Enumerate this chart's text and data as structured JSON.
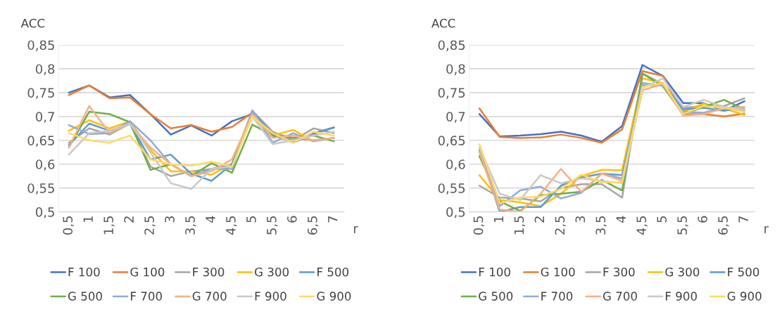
{
  "chart_data": [
    {
      "type": "line",
      "ylabel": "ACC",
      "xlabel": "r",
      "categories": [
        "0,5",
        "1",
        "1,5",
        "2",
        "2,5",
        "3",
        "3,5",
        "4",
        "4,5",
        "5",
        "5,5",
        "6",
        "6,5",
        "7"
      ],
      "ylim": [
        0.5,
        0.85
      ],
      "yticks": [
        {
          "value": 0.5,
          "label": "0,5"
        },
        {
          "value": 0.55,
          "label": "0,55"
        },
        {
          "value": 0.6,
          "label": "0,6"
        },
        {
          "value": 0.65,
          "label": "0,65"
        },
        {
          "value": 0.7,
          "label": "0,7"
        },
        {
          "value": 0.75,
          "label": "0,75"
        },
        {
          "value": 0.8,
          "label": "0,8"
        },
        {
          "value": 0.85,
          "label": "0,85"
        }
      ],
      "grid": "y",
      "legend": "bottom",
      "series": [
        {
          "name": "F 100",
          "color": "#4472c4",
          "values": [
            0.75,
            0.765,
            0.74,
            0.745,
            0.705,
            0.662,
            0.681,
            0.66,
            0.69,
            0.705,
            0.66,
            0.648,
            0.665,
            0.677
          ]
        },
        {
          "name": "G 100",
          "color": "#ed7d31",
          "values": [
            0.745,
            0.765,
            0.738,
            0.74,
            0.705,
            0.675,
            0.682,
            0.668,
            0.678,
            0.708,
            0.665,
            0.655,
            0.65,
            0.655
          ]
        },
        {
          "name": "F 300",
          "color": "#a5a5a5",
          "values": [
            0.645,
            0.675,
            0.662,
            0.685,
            0.595,
            0.575,
            0.585,
            0.59,
            0.6,
            0.712,
            0.668,
            0.65,
            0.675,
            0.665
          ]
        },
        {
          "name": "G 300",
          "color": "#ffc000",
          "values": [
            0.67,
            0.692,
            0.675,
            0.69,
            0.63,
            0.585,
            0.585,
            0.578,
            0.6,
            0.7,
            0.66,
            0.672,
            0.648,
            0.655
          ]
        },
        {
          "name": "F 500",
          "color": "#5b9bd5",
          "values": [
            0.64,
            0.685,
            0.67,
            0.685,
            0.61,
            0.62,
            0.58,
            0.565,
            0.6,
            0.71,
            0.663,
            0.645,
            0.663,
            0.677
          ]
        },
        {
          "name": "G 500",
          "color": "#70ad47",
          "values": [
            0.635,
            0.71,
            0.705,
            0.688,
            0.588,
            0.6,
            0.575,
            0.602,
            0.582,
            0.683,
            0.66,
            0.655,
            0.66,
            0.648
          ]
        },
        {
          "name": "F 700",
          "color": "#8faadc",
          "values": [
            0.682,
            0.663,
            0.665,
            0.69,
            0.65,
            0.6,
            0.575,
            0.59,
            0.59,
            0.713,
            0.645,
            0.665,
            0.648,
            0.655
          ]
        },
        {
          "name": "G 700",
          "color": "#f4b183",
          "values": [
            0.635,
            0.722,
            0.665,
            0.685,
            0.635,
            0.6,
            0.575,
            0.585,
            0.61,
            0.705,
            0.655,
            0.66,
            0.65,
            0.655
          ]
        },
        {
          "name": "F 900",
          "color": "#c9c9c9",
          "values": [
            0.62,
            0.665,
            0.67,
            0.685,
            0.625,
            0.56,
            0.548,
            0.59,
            0.595,
            0.7,
            0.642,
            0.65,
            0.66,
            0.668
          ]
        },
        {
          "name": "G 900",
          "color": "#ffd966",
          "values": [
            0.665,
            0.65,
            0.645,
            0.66,
            0.61,
            0.6,
            0.597,
            0.605,
            0.595,
            0.7,
            0.665,
            0.645,
            0.668,
            0.66
          ]
        }
      ]
    },
    {
      "type": "line",
      "ylabel": "ACC",
      "xlabel": "r",
      "categories": [
        "0,5",
        "1",
        "1,5",
        "2",
        "2,5",
        "3",
        "3,5",
        "4",
        "4,5",
        "5",
        "5,5",
        "6",
        "6,5",
        "7"
      ],
      "ylim": [
        0.5,
        0.85
      ],
      "yticks": [
        {
          "value": 0.5,
          "label": "0,5"
        },
        {
          "value": 0.55,
          "label": "0,55"
        },
        {
          "value": 0.6,
          "label": "0,6"
        },
        {
          "value": 0.65,
          "label": "0,65"
        },
        {
          "value": 0.7,
          "label": "0,7"
        },
        {
          "value": 0.75,
          "label": "0,75"
        },
        {
          "value": 0.8,
          "label": "0,8"
        },
        {
          "value": 0.85,
          "label": "0,85"
        }
      ],
      "grid": "y",
      "legend": "bottom",
      "series": [
        {
          "name": "F 100",
          "color": "#4472c4",
          "values": [
            0.705,
            0.658,
            0.66,
            0.663,
            0.668,
            0.66,
            0.647,
            0.68,
            0.808,
            0.785,
            0.728,
            0.728,
            0.712,
            0.732
          ]
        },
        {
          "name": "G 100",
          "color": "#ed7d31",
          "values": [
            0.717,
            0.657,
            0.655,
            0.656,
            0.662,
            0.655,
            0.645,
            0.673,
            0.795,
            0.785,
            0.705,
            0.705,
            0.7,
            0.706
          ]
        },
        {
          "name": "F 300",
          "color": "#a5a5a5",
          "values": [
            0.555,
            0.53,
            0.528,
            0.522,
            0.55,
            0.558,
            0.558,
            0.53,
            0.79,
            0.768,
            0.718,
            0.722,
            0.722,
            0.738
          ]
        },
        {
          "name": "G 300",
          "color": "#ffc000",
          "values": [
            0.577,
            0.525,
            0.52,
            0.512,
            0.538,
            0.575,
            0.588,
            0.587,
            0.78,
            0.77,
            0.71,
            0.727,
            0.717,
            0.703
          ]
        },
        {
          "name": "F 500",
          "color": "#5b9bd5",
          "values": [
            0.63,
            0.5,
            0.51,
            0.51,
            0.555,
            0.572,
            0.58,
            0.577,
            0.765,
            0.765,
            0.715,
            0.718,
            0.712,
            0.72
          ]
        },
        {
          "name": "G 500",
          "color": "#70ad47",
          "values": [
            0.617,
            0.522,
            0.502,
            0.535,
            0.538,
            0.542,
            0.567,
            0.545,
            0.79,
            0.763,
            0.705,
            0.72,
            0.735,
            0.715
          ]
        },
        {
          "name": "F 700",
          "color": "#8faadc",
          "values": [
            0.63,
            0.512,
            0.545,
            0.553,
            0.528,
            0.54,
            0.58,
            0.57,
            0.77,
            0.765,
            0.71,
            0.708,
            0.718,
            0.712
          ]
        },
        {
          "name": "G 700",
          "color": "#f4b183",
          "values": [
            0.625,
            0.505,
            0.5,
            0.538,
            0.59,
            0.542,
            0.58,
            0.565,
            0.755,
            0.768,
            0.702,
            0.705,
            0.717,
            0.72
          ]
        },
        {
          "name": "F 900",
          "color": "#c9c9c9",
          "values": [
            0.635,
            0.538,
            0.525,
            0.577,
            0.56,
            0.57,
            0.565,
            0.56,
            0.76,
            0.78,
            0.72,
            0.735,
            0.72,
            0.715
          ]
        },
        {
          "name": "G 900",
          "color": "#ffd966",
          "values": [
            0.642,
            0.518,
            0.53,
            0.532,
            0.548,
            0.578,
            0.562,
            0.562,
            0.762,
            0.77,
            0.705,
            0.722,
            0.718,
            0.71
          ]
        }
      ]
    }
  ]
}
